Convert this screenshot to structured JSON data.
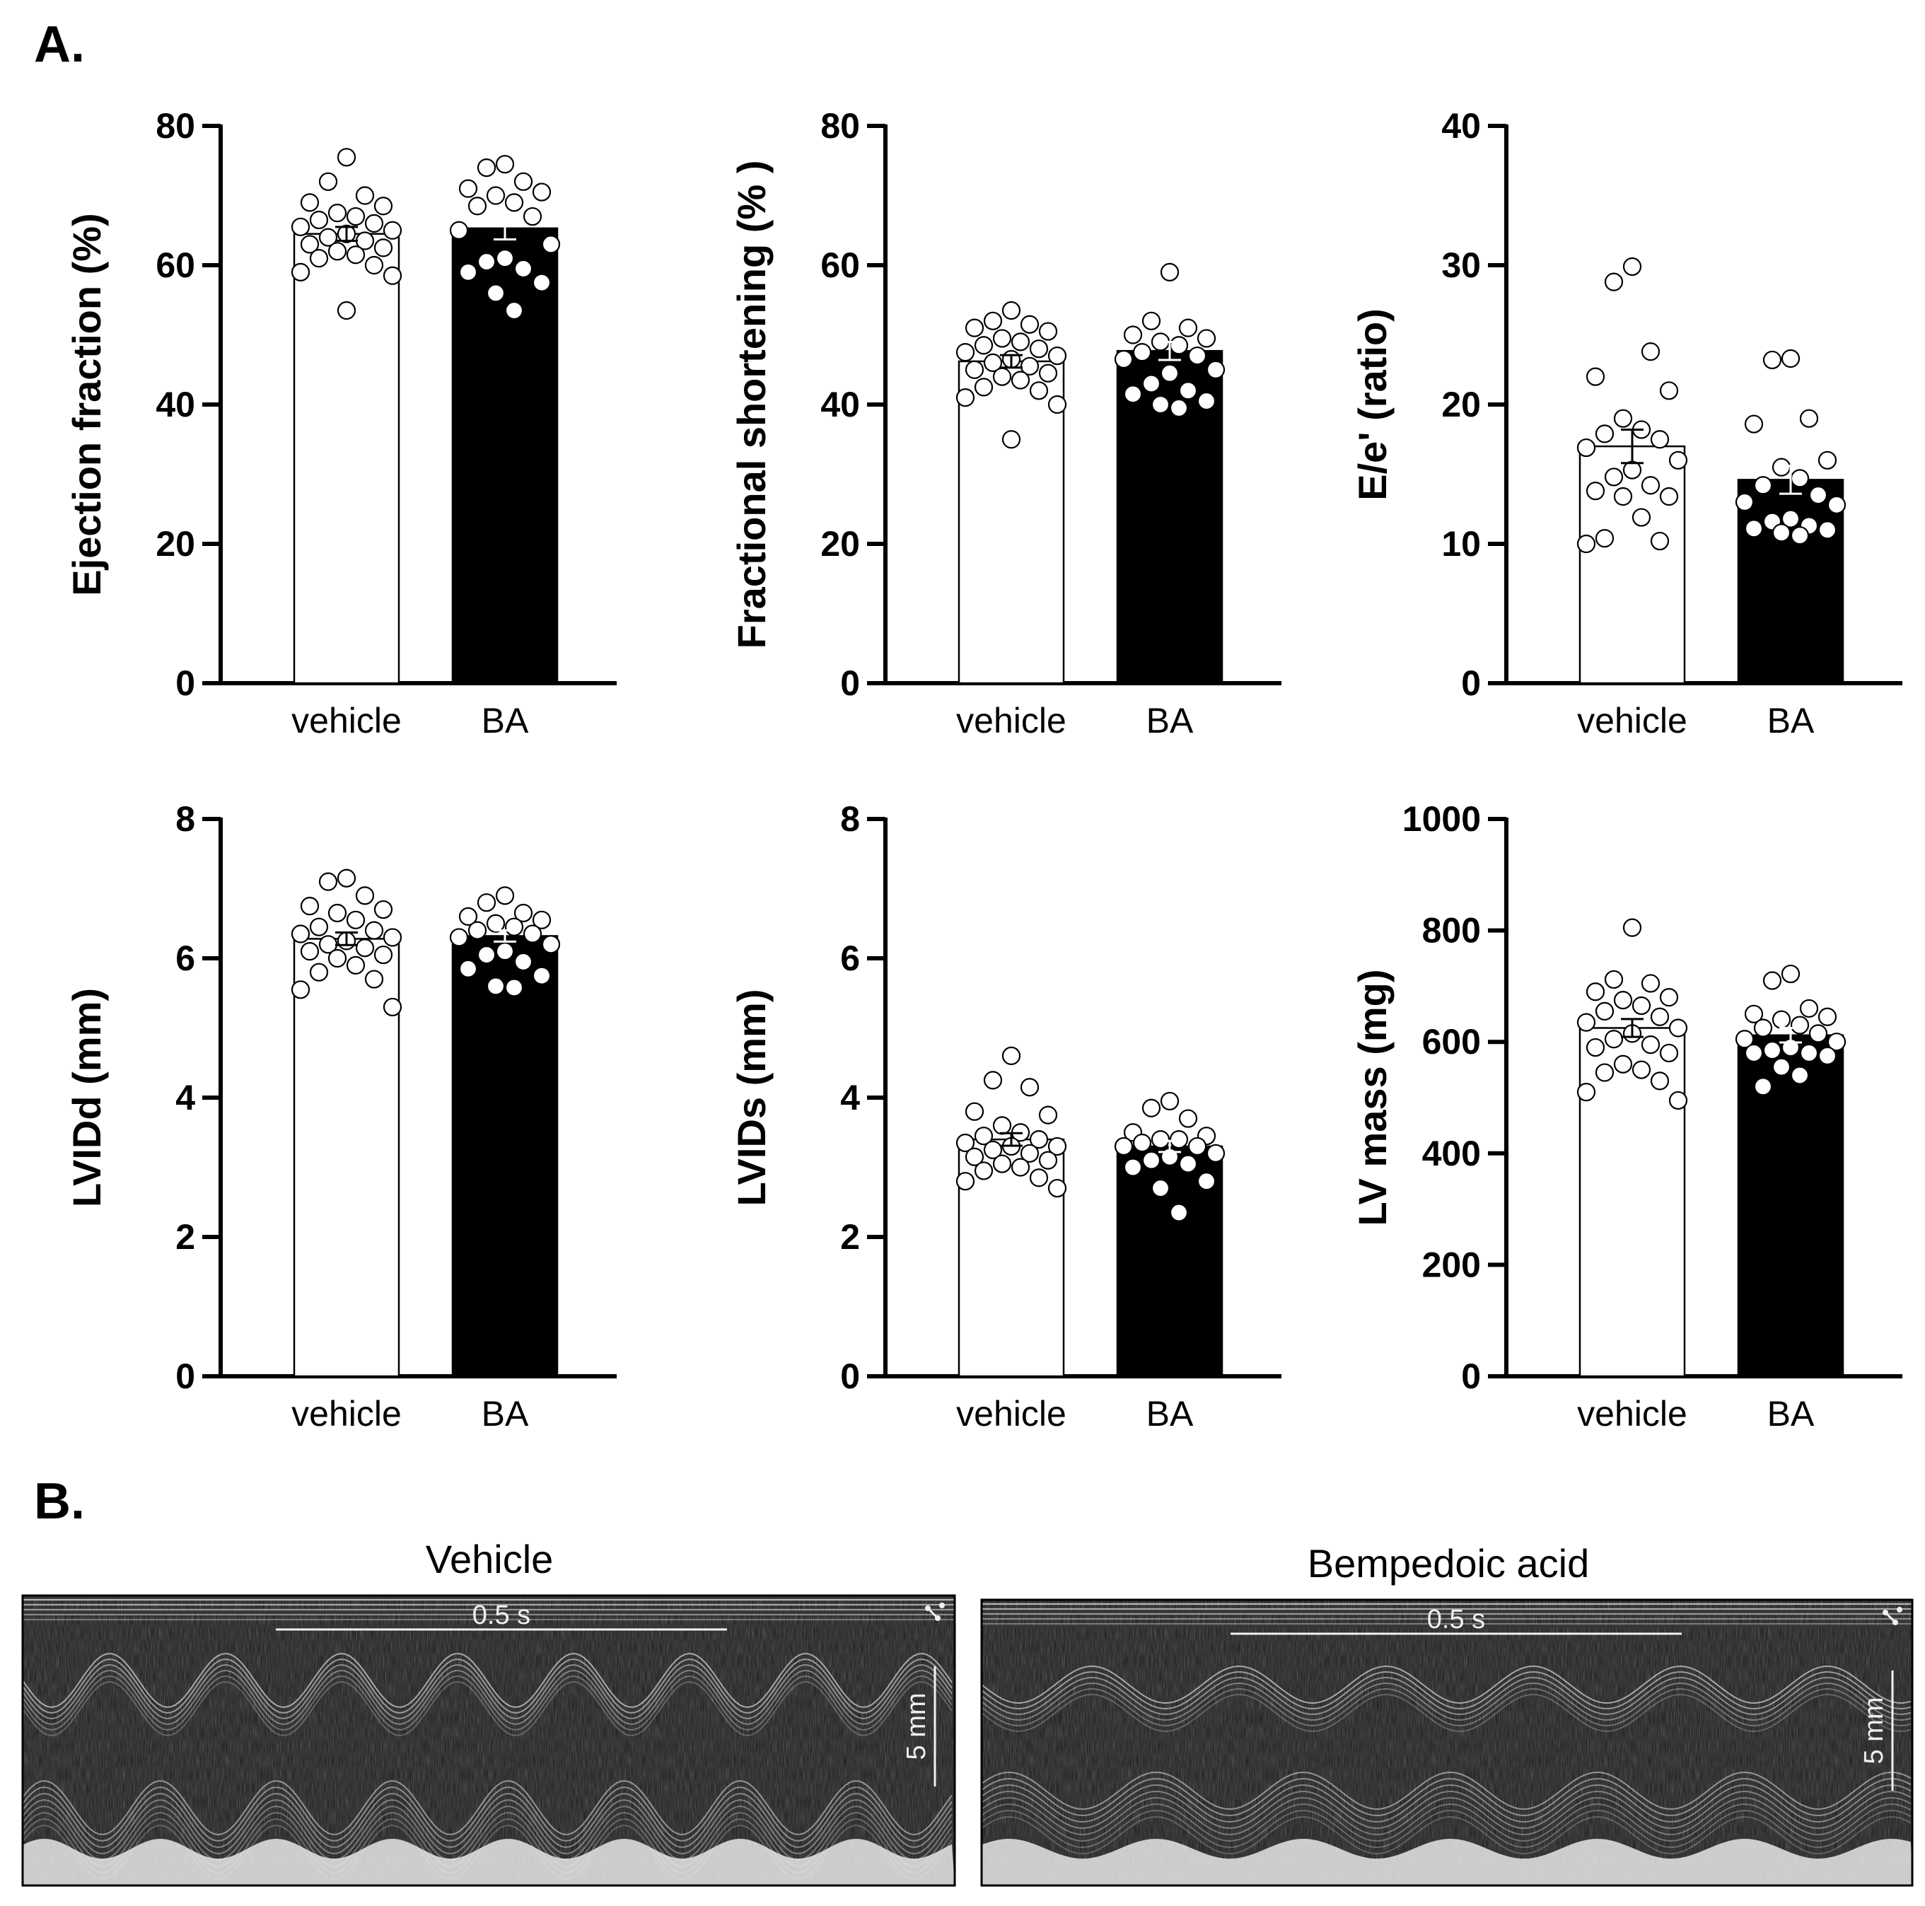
{
  "figure": {
    "panel_a_label": "A.",
    "panel_b_label": "B."
  },
  "colors": {
    "vehicle_bar": "#ffffff",
    "ba_bar": "#000000",
    "axis": "#000000"
  },
  "chart_data": [
    {
      "type": "bar",
      "ylabel": "Ejection fraction (%)",
      "categories": [
        "vehicle",
        "BA"
      ],
      "values": [
        64.5,
        65.3
      ],
      "sem": [
        1.0,
        1.6
      ],
      "ylim": [
        0,
        80
      ],
      "yticks": [
        0,
        20,
        40,
        60,
        80
      ],
      "points": [
        [
          75.5,
          72,
          70,
          69,
          68.5,
          67.5,
          67,
          66.5,
          66,
          65.5,
          65,
          64.5,
          64,
          63.5,
          63,
          62.5,
          62,
          61.5,
          61,
          60,
          59,
          58.5,
          53.5
        ],
        [
          74.5,
          74,
          72,
          71,
          70.5,
          70,
          69,
          68.5,
          67,
          65,
          63,
          61,
          60.5,
          59.5,
          59,
          57.5,
          56,
          53.5
        ]
      ]
    },
    {
      "type": "bar",
      "ylabel": "Fractional shortening (% )",
      "categories": [
        "vehicle",
        "BA"
      ],
      "values": [
        46.2,
        47.7
      ],
      "sem": [
        0.9,
        1.3
      ],
      "ylim": [
        0,
        80
      ],
      "yticks": [
        0,
        20,
        40,
        60,
        80
      ],
      "points": [
        [
          53.5,
          52,
          51.5,
          51,
          50.5,
          49.5,
          49,
          48.5,
          48,
          47.5,
          47,
          46.5,
          46,
          45.5,
          45,
          44.5,
          44,
          43.5,
          42.5,
          42,
          41,
          40,
          35
        ],
        [
          59,
          52,
          51,
          50,
          49.5,
          49,
          48.5,
          47.5,
          47,
          46.5,
          45,
          44.5,
          43,
          42,
          41.5,
          40.5,
          40,
          39.5
        ]
      ]
    },
    {
      "type": "bar",
      "ylabel": "E/e' (ratio)",
      "categories": [
        "vehicle",
        "BA"
      ],
      "values": [
        17.0,
        14.6
      ],
      "sem": [
        1.2,
        1.0
      ],
      "ylim": [
        0,
        40
      ],
      "yticks": [
        0,
        10,
        20,
        30,
        40
      ],
      "points": [
        [
          29.9,
          28.8,
          23.8,
          22.0,
          21.0,
          19.0,
          18.2,
          17.9,
          17.5,
          16.9,
          16.0,
          15.3,
          14.8,
          14.2,
          13.8,
          13.4,
          13.4,
          11.9,
          10.4,
          10.2,
          10.0
        ],
        [
          23.3,
          23.2,
          19.0,
          18.6,
          16.0,
          15.5,
          14.7,
          14.2,
          13.5,
          13.0,
          12.8,
          11.8,
          11.6,
          11.3,
          11.1,
          11.0,
          10.8,
          10.6
        ]
      ]
    },
    {
      "type": "bar",
      "ylabel": "LVIDd (mm)",
      "categories": [
        "vehicle",
        "BA"
      ],
      "values": [
        6.28,
        6.32
      ],
      "sem": [
        0.09,
        0.08
      ],
      "ylim": [
        0,
        8
      ],
      "yticks": [
        0,
        2,
        4,
        6,
        8
      ],
      "points": [
        [
          7.15,
          7.1,
          6.9,
          6.75,
          6.7,
          6.65,
          6.55,
          6.45,
          6.4,
          6.35,
          6.3,
          6.25,
          6.2,
          6.15,
          6.1,
          6.05,
          6.0,
          5.9,
          5.8,
          5.7,
          5.55,
          5.3
        ],
        [
          6.9,
          6.8,
          6.65,
          6.6,
          6.55,
          6.5,
          6.45,
          6.4,
          6.35,
          6.3,
          6.2,
          6.1,
          6.05,
          5.95,
          5.85,
          5.75,
          5.6,
          5.58
        ]
      ]
    },
    {
      "type": "bar",
      "ylabel": "LVIDs (mm)",
      "categories": [
        "vehicle",
        "BA"
      ],
      "values": [
        3.4,
        3.3
      ],
      "sem": [
        0.09,
        0.08
      ],
      "ylim": [
        0,
        8
      ],
      "yticks": [
        0,
        2,
        4,
        6,
        8
      ],
      "points": [
        [
          4.6,
          4.25,
          4.15,
          3.8,
          3.75,
          3.6,
          3.5,
          3.45,
          3.4,
          3.35,
          3.3,
          3.3,
          3.25,
          3.2,
          3.15,
          3.1,
          3.05,
          3.0,
          2.95,
          2.85,
          2.8,
          2.7
        ],
        [
          3.95,
          3.85,
          3.7,
          3.5,
          3.45,
          3.4,
          3.4,
          3.35,
          3.3,
          3.3,
          3.2,
          3.15,
          3.1,
          3.05,
          3.0,
          2.8,
          2.7,
          2.35
        ]
      ]
    },
    {
      "type": "bar",
      "ylabel": "LV mass (mg)",
      "categories": [
        "vehicle",
        "BA"
      ],
      "values": [
        625,
        612
      ],
      "sem": [
        16,
        13
      ],
      "ylim": [
        0,
        1000
      ],
      "yticks": [
        0,
        200,
        400,
        600,
        800,
        1000
      ],
      "points": [
        [
          805,
          712,
          705,
          690,
          680,
          675,
          665,
          655,
          645,
          635,
          625,
          615,
          605,
          595,
          590,
          580,
          560,
          550,
          545,
          530,
          510,
          495
        ],
        [
          722,
          710,
          660,
          650,
          645,
          640,
          630,
          625,
          615,
          605,
          600,
          590,
          585,
          580,
          580,
          575,
          555,
          540,
          520
        ]
      ]
    }
  ],
  "echo": [
    {
      "title": "Vehicle",
      "time_scale": "0.5 s",
      "depth_scale": "5 mm"
    },
    {
      "title": "Bempedoic acid",
      "time_scale": "0.5 s",
      "depth_scale": "5 mm"
    }
  ]
}
